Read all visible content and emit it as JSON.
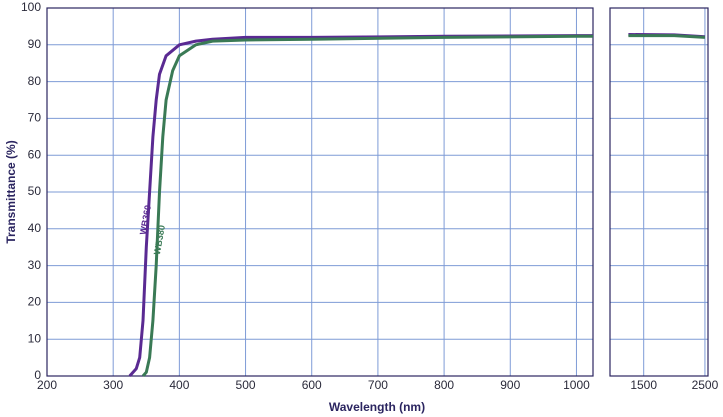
{
  "chart_data": {
    "type": "line",
    "x_label": "Wavelength (nm)",
    "y_label": "Transmittance (%)",
    "xlim": [
      200,
      1025
    ],
    "xticks": [
      200,
      300,
      400,
      500,
      600,
      700,
      800,
      900,
      1000
    ],
    "x2lim": [
      950,
      2550
    ],
    "x2ticks": [
      1500,
      2500
    ],
    "ylim": [
      0,
      100
    ],
    "yticks": [
      0,
      10,
      20,
      30,
      40,
      50,
      60,
      70,
      80,
      90,
      100
    ],
    "grid": true,
    "series": [
      {
        "name": "WB360",
        "color": "#5a2a92",
        "x": [
          325,
          335,
          340,
          345,
          350,
          355,
          360,
          365,
          370,
          380,
          400,
          425,
          450,
          500,
          600,
          800,
          1000,
          1025,
          1250,
          2000,
          2500
        ],
        "values": [
          0,
          2,
          5,
          15,
          35,
          50,
          65,
          75,
          82,
          87,
          90,
          91,
          91.5,
          92,
          92,
          92.3,
          92.5,
          92.5,
          92.8,
          92.7,
          92.2
        ]
      },
      {
        "name": "WB380",
        "color": "#3a7a55",
        "x": [
          345,
          350,
          355,
          360,
          365,
          370,
          375,
          380,
          390,
          400,
          425,
          450,
          500,
          600,
          800,
          1000,
          1025,
          1250,
          2000,
          2500
        ],
        "values": [
          0,
          1,
          5,
          15,
          30,
          50,
          65,
          75,
          83,
          87,
          90,
          91,
          91.3,
          91.5,
          92,
          92.3,
          92.3,
          92.5,
          92.5,
          92
        ]
      }
    ]
  }
}
